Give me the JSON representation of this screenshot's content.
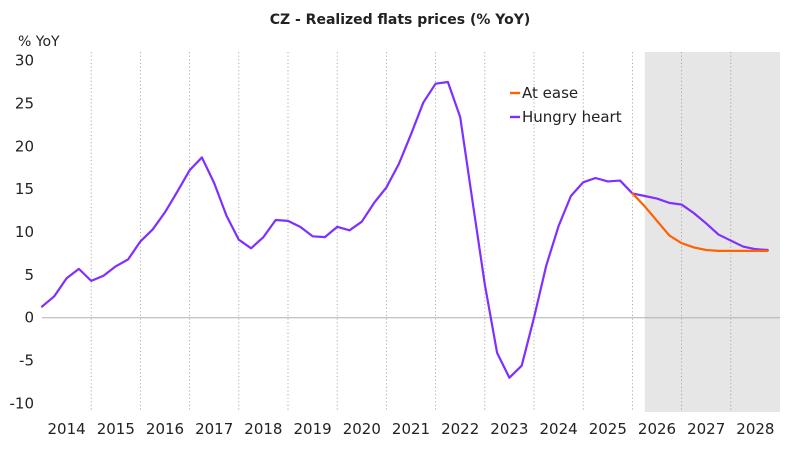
{
  "chart_data": {
    "type": "line",
    "title": "CZ - Realized flats prices (% YoY)",
    "ylabel": "% YoY",
    "ylim": [
      -11,
      31
    ],
    "yticks": [
      30,
      25,
      20,
      15,
      10,
      5,
      0,
      -5,
      -10
    ],
    "x_tick_labels": [
      "2014",
      "2015",
      "2016",
      "2017",
      "2018",
      "2019",
      "2020",
      "2021",
      "2022",
      "2023",
      "2024",
      "2025",
      "2026",
      "2027",
      "2028"
    ],
    "xlim": [
      2014.0,
      2029.0
    ],
    "grid": "vertical dotted",
    "legend_position": "top-right",
    "forecast_shading_from": 2026.25,
    "zero_line": true,
    "series": [
      {
        "name": "At ease",
        "color": "#FF6200",
        "points": [
          [
            2026.0,
            14.5
          ],
          [
            2026.25,
            13.0
          ],
          [
            2026.5,
            11.3
          ],
          [
            2026.75,
            9.6
          ],
          [
            2027.0,
            8.7
          ],
          [
            2027.25,
            8.2
          ],
          [
            2027.5,
            7.9
          ],
          [
            2027.75,
            7.8
          ],
          [
            2028.0,
            7.8
          ],
          [
            2028.25,
            7.8
          ],
          [
            2028.5,
            7.8
          ],
          [
            2028.75,
            7.8
          ]
        ]
      },
      {
        "name": "Hungry heart",
        "color": "#7F2FFF",
        "points": [
          [
            2014.0,
            1.3
          ],
          [
            2014.25,
            2.5
          ],
          [
            2014.5,
            4.6
          ],
          [
            2014.75,
            5.7
          ],
          [
            2015.0,
            4.3
          ],
          [
            2015.25,
            4.9
          ],
          [
            2015.5,
            6.0
          ],
          [
            2015.75,
            6.8
          ],
          [
            2016.0,
            8.9
          ],
          [
            2016.25,
            10.3
          ],
          [
            2016.5,
            12.3
          ],
          [
            2016.75,
            14.7
          ],
          [
            2017.0,
            17.2
          ],
          [
            2017.25,
            18.7
          ],
          [
            2017.5,
            15.7
          ],
          [
            2017.75,
            11.9
          ],
          [
            2018.0,
            9.1
          ],
          [
            2018.25,
            8.1
          ],
          [
            2018.5,
            9.4
          ],
          [
            2018.75,
            11.4
          ],
          [
            2019.0,
            11.3
          ],
          [
            2019.25,
            10.6
          ],
          [
            2019.5,
            9.5
          ],
          [
            2019.75,
            9.4
          ],
          [
            2020.0,
            10.6
          ],
          [
            2020.25,
            10.2
          ],
          [
            2020.5,
            11.2
          ],
          [
            2020.75,
            13.4
          ],
          [
            2021.0,
            15.2
          ],
          [
            2021.25,
            17.9
          ],
          [
            2021.5,
            21.4
          ],
          [
            2021.75,
            25.1
          ],
          [
            2022.0,
            27.3
          ],
          [
            2022.25,
            27.5
          ],
          [
            2022.5,
            23.4
          ],
          [
            2022.75,
            13.6
          ],
          [
            2023.0,
            3.9
          ],
          [
            2023.25,
            -4.1
          ],
          [
            2023.5,
            -7.0
          ],
          [
            2023.75,
            -5.6
          ],
          [
            2024.0,
            0.0
          ],
          [
            2024.25,
            6.1
          ],
          [
            2024.5,
            10.7
          ],
          [
            2024.75,
            14.2
          ],
          [
            2025.0,
            15.8
          ],
          [
            2025.25,
            16.3
          ],
          [
            2025.5,
            15.9
          ],
          [
            2025.75,
            16.0
          ],
          [
            2026.0,
            14.5
          ],
          [
            2026.25,
            14.2
          ],
          [
            2026.5,
            13.9
          ],
          [
            2026.75,
            13.4
          ],
          [
            2027.0,
            13.2
          ],
          [
            2027.25,
            12.2
          ],
          [
            2027.5,
            11.0
          ],
          [
            2027.75,
            9.7
          ],
          [
            2028.0,
            9.0
          ],
          [
            2028.25,
            8.3
          ],
          [
            2028.5,
            8.0
          ],
          [
            2028.75,
            7.9
          ]
        ]
      }
    ]
  }
}
